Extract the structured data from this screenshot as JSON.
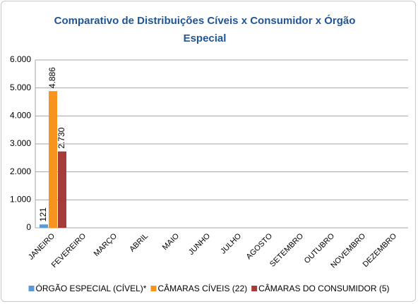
{
  "chart_data": {
    "type": "bar",
    "title": "Comparativo de Distribuições Cíveis x Consumidor x Órgão Especial",
    "categories": [
      "JANEIRO",
      "FEVEREIRO",
      "MARÇO",
      "ABRIL",
      "MAIO",
      "JUNHO",
      "JULHO",
      "AGOSTO",
      "SETEMBRO",
      "OUTUBRO",
      "NOVEMBRO",
      "DEZEMBRO"
    ],
    "series": [
      {
        "name": "ÓRGÃO ESPECIAL (CÍVEL)*",
        "color": "#5b9bd5",
        "values": [
          121,
          null,
          null,
          null,
          null,
          null,
          null,
          null,
          null,
          null,
          null,
          null
        ],
        "value_labels": [
          "121",
          null,
          null,
          null,
          null,
          null,
          null,
          null,
          null,
          null,
          null,
          null
        ]
      },
      {
        "name": "CÂMARAS CÍVEIS (22)",
        "color": "#f7941d",
        "values": [
          4886,
          null,
          null,
          null,
          null,
          null,
          null,
          null,
          null,
          null,
          null,
          null
        ],
        "value_labels": [
          "4.886",
          null,
          null,
          null,
          null,
          null,
          null,
          null,
          null,
          null,
          null,
          null
        ]
      },
      {
        "name": "CÂMARAS DO CONSUMIDOR (5)",
        "color": "#a53c3a",
        "values": [
          2730,
          null,
          null,
          null,
          null,
          null,
          null,
          null,
          null,
          null,
          null,
          null
        ],
        "value_labels": [
          "2.730",
          null,
          null,
          null,
          null,
          null,
          null,
          null,
          null,
          null,
          null,
          null
        ]
      }
    ],
    "ylim": [
      0,
      6000
    ],
    "yticks": [
      0,
      {
        "value": 1000,
        "label": "1.000"
      },
      {
        "value": 2000,
        "label": "2.000"
      },
      {
        "value": 3000,
        "label": "3.000"
      },
      {
        "value": 4000,
        "label": "4.000"
      },
      {
        "value": 5000,
        "label": "5.000"
      },
      {
        "value": 6000,
        "label": "6.000"
      }
    ],
    "grid": true,
    "legend": "bottom"
  }
}
